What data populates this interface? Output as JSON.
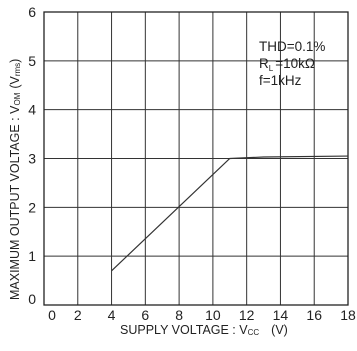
{
  "chart_data": {
    "type": "line",
    "xlabel_main": "SUPPLY VOLTAGE : V",
    "xlabel_sub": "CC",
    "xlabel_unit": "(V)",
    "ylabel_main": "MAXIMUM OUTPUT VOLTAGE : V",
    "ylabel_sub": "OM",
    "ylabel_unit": "(V",
    "ylabel_unit_sub": "rms",
    "ylabel_close": ")",
    "xlim": [
      0,
      18
    ],
    "ylim": [
      0,
      6
    ],
    "xticks": [
      "0",
      "2",
      "4",
      "6",
      "8",
      "10",
      "12",
      "14",
      "16",
      "18"
    ],
    "yticks": [
      "0",
      "1",
      "2",
      "3",
      "4",
      "5",
      "6"
    ],
    "grid": true,
    "annotations": {
      "thd": "THD=0.1%",
      "rl_main": "R",
      "rl_sub": "L",
      "rl_value": "=10kΩ",
      "freq": "f=1kHz"
    },
    "series": [
      {
        "color": "#333333",
        "x": [
          4,
          11,
          13,
          18
        ],
        "y": [
          0.7,
          3.0,
          3.03,
          3.05
        ]
      }
    ]
  }
}
